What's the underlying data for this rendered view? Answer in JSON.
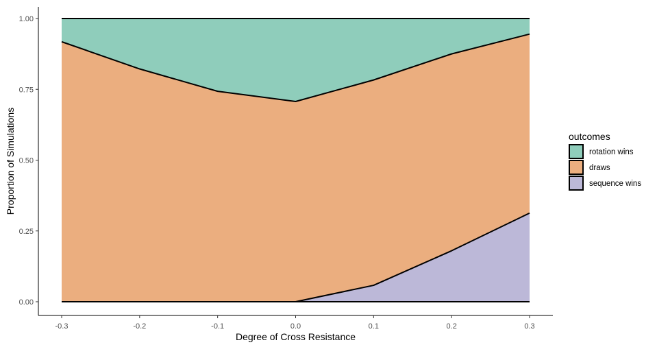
{
  "chart_data": {
    "type": "area",
    "stacked": true,
    "x": [
      -0.3,
      -0.2,
      -0.1,
      0.0,
      0.1,
      0.2,
      0.3
    ],
    "xlabel": "Degree of Cross Resistance",
    "ylabel": "Proportion of Simulations",
    "xlim": [
      -0.3,
      0.3
    ],
    "ylim": [
      0,
      1
    ],
    "xticks": [
      -0.3,
      -0.2,
      -0.1,
      0.0,
      0.1,
      0.2,
      0.3
    ],
    "xtick_labels": [
      "-0.3",
      "-0.2",
      "-0.1",
      "0.0",
      "0.1",
      "0.2",
      "0.3"
    ],
    "yticks": [
      0,
      0.25,
      0.5,
      0.75,
      1
    ],
    "ytick_labels": [
      "0.00",
      "0.25",
      "0.50",
      "0.75",
      "1.00"
    ],
    "grid": false,
    "legend": {
      "title": "outcomes",
      "position": "right",
      "entries": [
        "rotation wins",
        "draws",
        "sequence wins"
      ]
    },
    "series": [
      {
        "name": "sequence wins",
        "color": "#bcb8d8",
        "values": [
          0.0,
          0.0,
          0.0,
          0.0,
          0.058,
          0.18,
          0.313
        ]
      },
      {
        "name": "draws",
        "color": "#ebae7f",
        "values": [
          0.918,
          0.822,
          0.743,
          0.707,
          0.725,
          0.695,
          0.632
        ]
      },
      {
        "name": "rotation wins",
        "color": "#8fcdbb",
        "values": [
          0.082,
          0.178,
          0.257,
          0.293,
          0.217,
          0.125,
          0.055
        ]
      }
    ]
  }
}
